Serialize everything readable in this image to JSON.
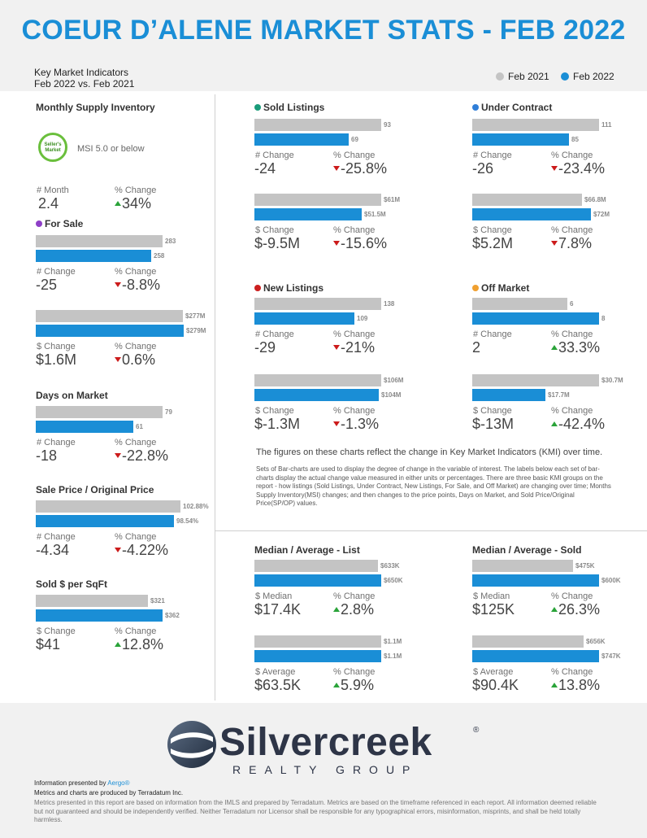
{
  "page": {
    "title": "COEUR D’ALENE MARKET STATS - FEB 2022",
    "kmi_line1": "Key Market Indicators",
    "kmi_line2": "Feb 2022 vs. Feb 2021",
    "legend": [
      {
        "label": "Feb 2021",
        "color": "#c4c4c4"
      },
      {
        "label": "Feb 2022",
        "color": "#1a8ed6"
      }
    ],
    "seller_badge": "Seller's Market",
    "msi_text": "MSI 5.0 or below",
    "note_main": "The figures on these charts reflect the change in Key Market Indicators (KMI) over time.",
    "note_detail": "Sets of Bar-charts are used to display the degree of change in the variable of interest. The labels below each set of bar-charts display the actual change value measured in either units or percentages. There are three basic KMI groups on the report - how listings (Sold Listings, Under Contract, New Listings, For Sale, and Off Market) are changing over time; Months Supply Inventory(MSI) changes; and then changes to the price points, Days on Market, and Sold Price/Original Price(SP/OP) values.",
    "logo_word": "Silvercreek",
    "logo_reg": "®",
    "logo_sub": "REALTY GROUP",
    "footer_presented_prefix": "Information presented by ",
    "footer_presented_brand": "Aergo®",
    "footer_metrics": "Metrics and charts are produced by Terradatum Inc.",
    "footer_disclaimer": "Metrics presented in this report are based on information from the IMLS and prepared by Terradatum. Metrics are based on the timeframe referenced in each report. All information deemed reliable but not guaranteed and should be independently verified. Neither Terradatum nor Licensor shall be responsible for any typographical errors, misinformation, misprints, and shall be held totally harmless."
  },
  "sections": {
    "msi": {
      "title": "Monthly Supply Inventory",
      "dot": null
    },
    "for_sale": {
      "title": "For Sale",
      "dot": "#8e3fc7"
    },
    "dom": {
      "title": "Days on Market",
      "dot": null
    },
    "spop": {
      "title": "Sale Price / Original Price",
      "dot": null
    },
    "sqft": {
      "title": "Sold $ per SqFt",
      "dot": null
    },
    "sold": {
      "title": "Sold Listings",
      "dot": "#1a9c7a"
    },
    "under_contract": {
      "title": "Under Contract",
      "dot": "#2f7ed8"
    },
    "new": {
      "title": "New Listings",
      "dot": "#cc1f1f"
    },
    "off_market": {
      "title": "Off Market",
      "dot": "#f0a030"
    },
    "list": {
      "title": "Median / Average - List",
      "dot": null
    },
    "sold_price": {
      "title": "Median / Average - Sold",
      "dot": null
    }
  },
  "chart_data": [
    {
      "id": "msi",
      "type": "table",
      "change_label": "# Month",
      "change": "2.4",
      "pct_label": "% Change",
      "pct": "34%",
      "dir": "up"
    },
    {
      "id": "for_sale_count",
      "type": "bar",
      "categories": [
        "Feb 2021",
        "Feb 2022"
      ],
      "values": [
        283,
        258
      ],
      "labels": [
        "283",
        "258"
      ],
      "change_label": "# Change",
      "change": "-25",
      "pct_label": "% Change",
      "pct": "-8.8%",
      "dir": "down"
    },
    {
      "id": "for_sale_volume",
      "type": "bar",
      "categories": [
        "Feb 2021",
        "Feb 2022"
      ],
      "values": [
        277,
        279
      ],
      "labels": [
        "$277M",
        "$279M"
      ],
      "change_label": "$ Change",
      "change": "$1.6M",
      "pct_label": "% Change",
      "pct": "0.6%",
      "dir": "down"
    },
    {
      "id": "dom",
      "type": "bar",
      "categories": [
        "Feb 2021",
        "Feb 2022"
      ],
      "values": [
        79,
        61
      ],
      "labels": [
        "79",
        "61"
      ],
      "change_label": "# Change",
      "change": "-18",
      "pct_label": "% Change",
      "pct": "-22.8%",
      "dir": "down"
    },
    {
      "id": "spop",
      "type": "bar",
      "categories": [
        "Feb 2021",
        "Feb 2022"
      ],
      "values": [
        102.88,
        98.54
      ],
      "labels": [
        "102.88%",
        "98.54%"
      ],
      "change_label": "# Change",
      "change": "-4.34",
      "pct_label": "% Change",
      "pct": "-4.22%",
      "dir": "down"
    },
    {
      "id": "sqft",
      "type": "bar",
      "categories": [
        "Feb 2021",
        "Feb 2022"
      ],
      "values": [
        321,
        362
      ],
      "labels": [
        "$321",
        "$362"
      ],
      "change_label": "$ Change",
      "change": "$41",
      "pct_label": "% Change",
      "pct": "12.8%",
      "dir": "up"
    },
    {
      "id": "sold_count",
      "type": "bar",
      "categories": [
        "Feb 2021",
        "Feb 2022"
      ],
      "values": [
        93,
        69
      ],
      "labels": [
        "93",
        "69"
      ],
      "change_label": "# Change",
      "change": "-24",
      "pct_label": "% Change",
      "pct": "-25.8%",
      "dir": "down"
    },
    {
      "id": "sold_volume",
      "type": "bar",
      "categories": [
        "Feb 2021",
        "Feb 2022"
      ],
      "values": [
        61,
        51.5
      ],
      "labels": [
        "$61M",
        "$51.5M"
      ],
      "change_label": "$ Change",
      "change": "$-9.5M",
      "pct_label": "% Change",
      "pct": "-15.6%",
      "dir": "down"
    },
    {
      "id": "uc_count",
      "type": "bar",
      "categories": [
        "Feb 2021",
        "Feb 2022"
      ],
      "values": [
        111,
        85
      ],
      "labels": [
        "111",
        "85"
      ],
      "change_label": "# Change",
      "change": "-26",
      "pct_label": "% Change",
      "pct": "-23.4%",
      "dir": "down"
    },
    {
      "id": "uc_volume",
      "type": "bar",
      "categories": [
        "Feb 2021",
        "Feb 2022"
      ],
      "values": [
        66.8,
        72
      ],
      "labels": [
        "$66.8M",
        "$72M"
      ],
      "change_label": "$ Change",
      "change": "$5.2M",
      "pct_label": "% Change",
      "pct": "7.8%",
      "dir": "down"
    },
    {
      "id": "new_count",
      "type": "bar",
      "categories": [
        "Feb 2021",
        "Feb 2022"
      ],
      "values": [
        138,
        109
      ],
      "labels": [
        "138",
        "109"
      ],
      "change_label": "# Change",
      "change": "-29",
      "pct_label": "% Change",
      "pct": "-21%",
      "dir": "down"
    },
    {
      "id": "new_volume",
      "type": "bar",
      "categories": [
        "Feb 2021",
        "Feb 2022"
      ],
      "values": [
        106,
        104
      ],
      "labels": [
        "$106M",
        "$104M"
      ],
      "change_label": "$ Change",
      "change": "$-1.3M",
      "pct_label": "% Change",
      "pct": "-1.3%",
      "dir": "down"
    },
    {
      "id": "off_count",
      "type": "bar",
      "categories": [
        "Feb 2021",
        "Feb 2022"
      ],
      "values": [
        6,
        8
      ],
      "labels": [
        "6",
        "8"
      ],
      "change_label": "# Change",
      "change": "2",
      "pct_label": "% Change",
      "pct": "33.3%",
      "dir": "up"
    },
    {
      "id": "off_volume",
      "type": "bar",
      "categories": [
        "Feb 2021",
        "Feb 2022"
      ],
      "values": [
        30.7,
        17.7
      ],
      "labels": [
        "$30.7M",
        "$17.7M"
      ],
      "change_label": "$ Change",
      "change": "$-13M",
      "pct_label": "% Change",
      "pct": "-42.4%",
      "dir": "up"
    },
    {
      "id": "list_median",
      "type": "bar",
      "categories": [
        "Feb 2021",
        "Feb 2022"
      ],
      "values": [
        633,
        650
      ],
      "labels": [
        "$633K",
        "$650K"
      ],
      "change_label": "$ Median",
      "change": "$17.4K",
      "pct_label": "% Change",
      "pct": "2.8%",
      "dir": "up"
    },
    {
      "id": "list_average",
      "type": "bar",
      "categories": [
        "Feb 2021",
        "Feb 2022"
      ],
      "values": [
        1100,
        1100
      ],
      "labels": [
        "$1.1M",
        "$1.1M"
      ],
      "change_label": "$ Average",
      "change": "$63.5K",
      "pct_label": "% Change",
      "pct": "5.9%",
      "dir": "up"
    },
    {
      "id": "sold_median",
      "type": "bar",
      "categories": [
        "Feb 2021",
        "Feb 2022"
      ],
      "values": [
        475,
        600
      ],
      "labels": [
        "$475K",
        "$600K"
      ],
      "change_label": "$ Median",
      "change": "$125K",
      "pct_label": "% Change",
      "pct": "26.3%",
      "dir": "up"
    },
    {
      "id": "sold_average",
      "type": "bar",
      "categories": [
        "Feb 2021",
        "Feb 2022"
      ],
      "values": [
        656,
        747
      ],
      "labels": [
        "$656K",
        "$747K"
      ],
      "change_label": "$ Average",
      "change": "$90.4K",
      "pct_label": "% Change",
      "pct": "13.8%",
      "dir": "up"
    }
  ]
}
